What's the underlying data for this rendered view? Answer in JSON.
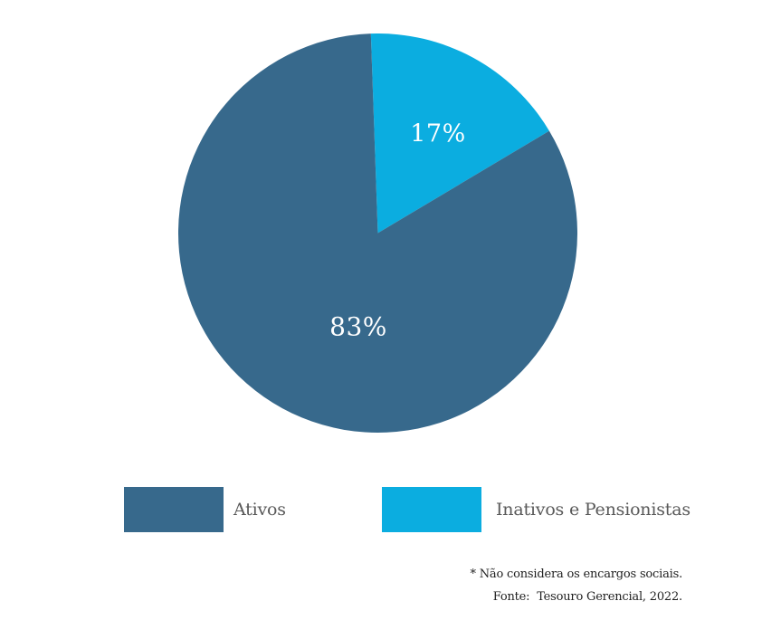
{
  "chart_data": {
    "type": "pie",
    "title": "",
    "start_angle_deg": -2,
    "direction": "clockwise",
    "legend_position": "bottom",
    "data_label_color": "#ffffff",
    "background_color": "#ffffff",
    "segments": [
      {
        "label": "Inativos e Pensionistas",
        "value": 17,
        "display_label": "17%",
        "color": "#0bade0"
      },
      {
        "label": "Ativos",
        "value": 83,
        "display_label": "83%",
        "color": "#37698c"
      }
    ]
  },
  "legend": {
    "items": [
      {
        "label": "Ativos",
        "color": "#37698c"
      },
      {
        "label": "Inativos e Pensionistas",
        "color": "#0bade0"
      }
    ]
  },
  "footnotes": {
    "note": "* Não considera os encargos sociais.",
    "source": "Fonte:  Tesouro Gerencial, 2022."
  }
}
